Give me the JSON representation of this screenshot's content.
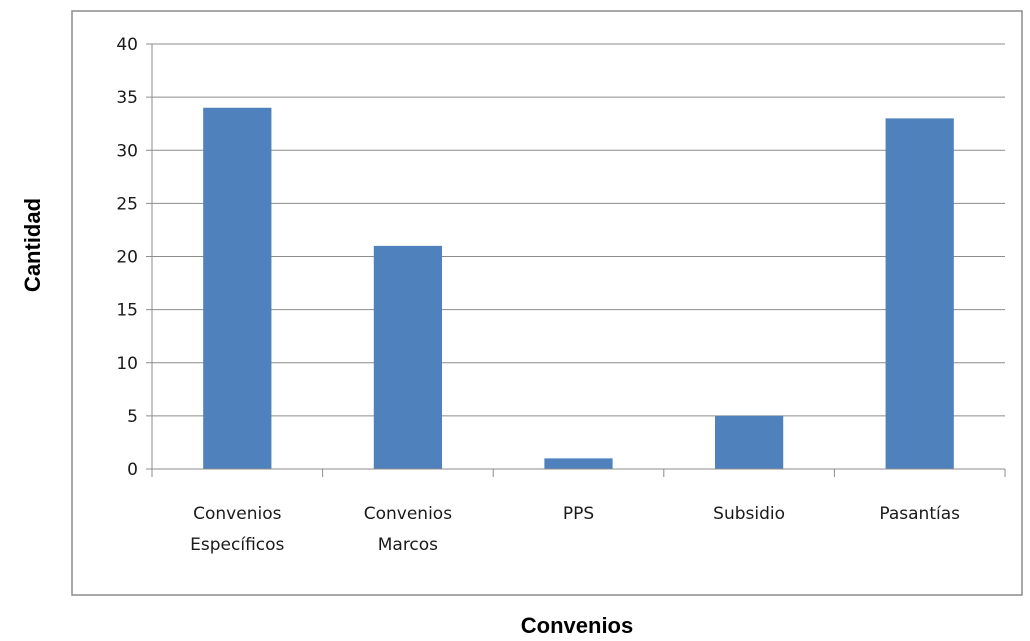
{
  "chart_data": {
    "type": "bar",
    "categories": [
      [
        "Convenios",
        "Específicos"
      ],
      [
        "Convenios",
        "Marcos"
      ],
      [
        "PPS"
      ],
      [
        "Subsidio"
      ],
      [
        "Pasantías"
      ]
    ],
    "values": [
      34,
      21,
      1,
      5,
      33
    ],
    "xlabel": "Convenios",
    "ylabel": "Cantidad",
    "ylim": [
      0,
      40
    ],
    "yticks": [
      0,
      5,
      10,
      15,
      20,
      25,
      30,
      35,
      40
    ],
    "grid": true,
    "legend": "none",
    "bar_color": "#4f81bd",
    "grid_color": "#8c8c8c"
  }
}
